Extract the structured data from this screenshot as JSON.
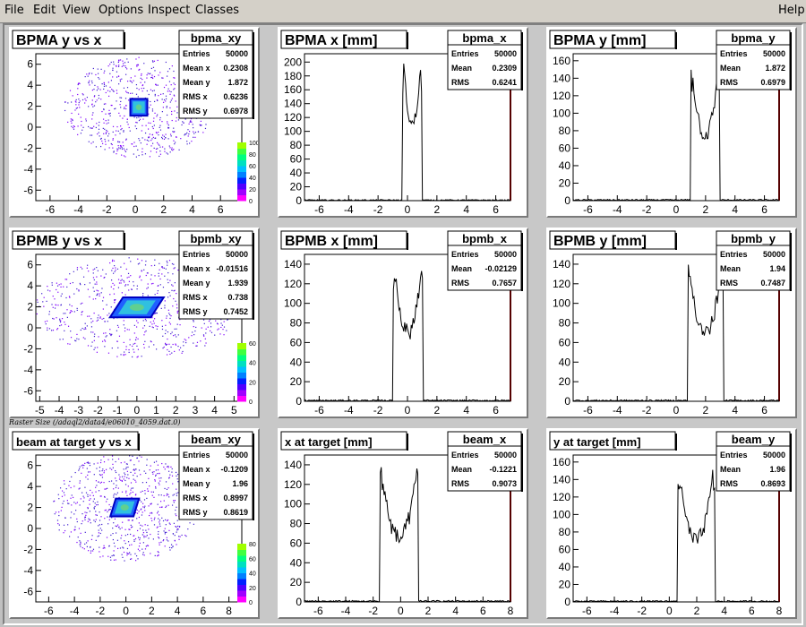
{
  "menu": {
    "file": "File",
    "edit": "Edit",
    "view": "View",
    "options": "Options",
    "inspect": "Inspect",
    "classes": "Classes",
    "help": "Help"
  },
  "raster_label": "Raster Size (/adaql2/data4/e06010_4059.dat.0)",
  "colors": {
    "frame_gray": "#c8c8c8",
    "axis_red": "#aa0000",
    "hist_line": "#000000"
  },
  "pads": [
    {
      "name": "bpma-xy",
      "kind": "scatter",
      "title": "BPMA y vs x",
      "stats": {
        "name": "bpma_xy",
        "rows": [
          [
            "Entries",
            "50000"
          ],
          [
            "Mean x",
            "0.2308"
          ],
          [
            "Mean y",
            "1.872"
          ],
          [
            "RMS x",
            "0.6236"
          ],
          [
            "RMS y",
            "0.6978"
          ]
        ]
      },
      "xticks": [
        "-6",
        "-4",
        "-2",
        "0",
        "2",
        "4",
        "6"
      ],
      "yticks": [
        "6",
        "4",
        "2",
        "0",
        "-2",
        "-4",
        "-6"
      ],
      "zticks": [
        "100",
        "80",
        "60",
        "40",
        "20",
        "0"
      ],
      "zlabel_prefix": "×10³"
    },
    {
      "name": "bpma-x",
      "kind": "hist",
      "title": "BPMA x [mm]",
      "stats": {
        "name": "bpma_x",
        "rows": [
          [
            "Entries",
            "50000"
          ],
          [
            "Mean",
            "0.2309"
          ],
          [
            "RMS",
            "0.6241"
          ]
        ]
      },
      "xticks": [
        "-6",
        "-4",
        "-2",
        "0",
        "2",
        "4",
        "6"
      ],
      "yticks": [
        "200",
        "180",
        "160",
        "140",
        "120",
        "100",
        "80",
        "60",
        "40",
        "20",
        "0"
      ]
    },
    {
      "name": "bpma-y",
      "kind": "hist",
      "title": "BPMA y [mm]",
      "stats": {
        "name": "bpma_y",
        "rows": [
          [
            "Entries",
            "50000"
          ],
          [
            "Mean",
            "1.872"
          ],
          [
            "RMS",
            "0.6979"
          ]
        ]
      },
      "xticks": [
        "-6",
        "-4",
        "-2",
        "0",
        "2",
        "4",
        "6"
      ],
      "yticks": [
        "160",
        "140",
        "120",
        "100",
        "80",
        "60",
        "40",
        "20",
        "0"
      ]
    },
    {
      "name": "bpmb-xy",
      "kind": "scatter",
      "title": "BPMB y vs x",
      "stats": {
        "name": "bpmb_xy",
        "rows": [
          [
            "Entries",
            "50000"
          ],
          [
            "Mean x",
            "-0.01516"
          ],
          [
            "Mean y",
            "1.939"
          ],
          [
            "RMS x",
            "0.738"
          ],
          [
            "RMS y",
            "0.7452"
          ]
        ]
      },
      "xticks": [
        "-5",
        "-4",
        "-3",
        "-2",
        "-1",
        "0",
        "1",
        "2",
        "3",
        "4",
        "5"
      ],
      "yticks": [
        "6",
        "4",
        "2",
        "0",
        "-2",
        "-4",
        "-6"
      ],
      "zticks": [
        "60",
        "40",
        "20",
        "0"
      ]
    },
    {
      "name": "bpmb-x",
      "kind": "hist",
      "title": "BPMB x [mm]",
      "stats": {
        "name": "bpmb_x",
        "rows": [
          [
            "Entries",
            "50000"
          ],
          [
            "Mean",
            "-0.02129"
          ],
          [
            "RMS",
            "0.7657"
          ]
        ]
      },
      "xticks": [
        "-6",
        "-4",
        "-2",
        "0",
        "2",
        "4",
        "6"
      ],
      "yticks": [
        "140",
        "120",
        "100",
        "80",
        "60",
        "40",
        "20",
        "0"
      ]
    },
    {
      "name": "bpmb-y",
      "kind": "hist",
      "title": "BPMB y [mm]",
      "stats": {
        "name": "bpmb_y",
        "rows": [
          [
            "Entries",
            "50000"
          ],
          [
            "Mean",
            "1.94"
          ],
          [
            "RMS",
            "0.7487"
          ]
        ]
      },
      "xticks": [
        "-6",
        "-4",
        "-2",
        "0",
        "2",
        "4",
        "6"
      ],
      "yticks": [
        "140",
        "120",
        "100",
        "80",
        "60",
        "40",
        "20",
        "0"
      ]
    },
    {
      "name": "beam-xy",
      "kind": "scatter",
      "title": "beam at target y vs x",
      "stats": {
        "name": "beam_xy",
        "rows": [
          [
            "Entries",
            "50000"
          ],
          [
            "Mean x",
            "-0.1209"
          ],
          [
            "Mean y",
            "1.96"
          ],
          [
            "RMS x",
            "0.8997"
          ],
          [
            "RMS y",
            "0.8619"
          ]
        ]
      },
      "xticks": [
        "-6",
        "-4",
        "-2",
        "0",
        "2",
        "4",
        "6",
        "8"
      ],
      "yticks": [
        "6",
        "4",
        "2",
        "0",
        "-2",
        "-4",
        "-6"
      ],
      "zticks": [
        "80",
        "60",
        "40",
        "20",
        "0"
      ]
    },
    {
      "name": "beam-x",
      "kind": "hist",
      "title": "x at target [mm]",
      "stats": {
        "name": "beam_x",
        "rows": [
          [
            "Entries",
            "50000"
          ],
          [
            "Mean",
            "-0.1221"
          ],
          [
            "RMS",
            "0.9073"
          ]
        ]
      },
      "xticks": [
        "-6",
        "-4",
        "-2",
        "0",
        "2",
        "4",
        "6",
        "8"
      ],
      "yticks": [
        "140",
        "120",
        "100",
        "80",
        "60",
        "40",
        "20",
        "0"
      ]
    },
    {
      "name": "beam-y",
      "kind": "hist",
      "title": "y at target [mm]",
      "stats": {
        "name": "beam_y",
        "rows": [
          [
            "Entries",
            "50000"
          ],
          [
            "Mean",
            "1.96"
          ],
          [
            "RMS",
            "0.8693"
          ]
        ]
      },
      "xticks": [
        "-6",
        "-4",
        "-2",
        "0",
        "2",
        "4",
        "6",
        "8"
      ],
      "yticks": [
        "160",
        "140",
        "120",
        "100",
        "80",
        "60",
        "40",
        "20",
        "0"
      ]
    }
  ]
}
